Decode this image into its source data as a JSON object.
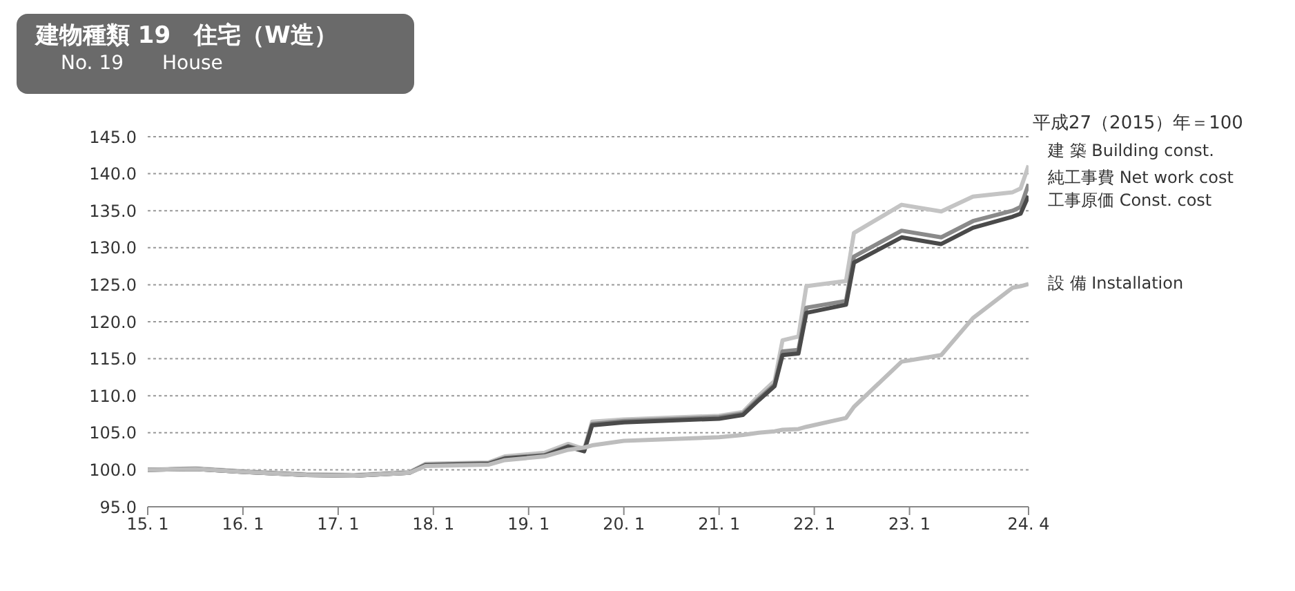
{
  "chart_data": {
    "type": "line",
    "title": "建物種類 19　住宅（W造）",
    "subtitle": "No. 19　　House",
    "annotations": [
      "平成27（2015）年＝100"
    ],
    "x": [
      "2015-01",
      "2015-07",
      "2016-01",
      "2016-09",
      "2017-03",
      "2017-10",
      "2017-12",
      "2018-08",
      "2018-10",
      "2019-03",
      "2019-06",
      "2019-08",
      "2019-09",
      "2020-01",
      "2021-01",
      "2021-04",
      "2021-06",
      "2021-08",
      "2021-09",
      "2021-11",
      "2021-12",
      "2022-05",
      "2022-06",
      "2022-12",
      "2023-05",
      "2023-09",
      "2024-02",
      "2024-03",
      "2024-04"
    ],
    "series": [
      {
        "name": "建 築  Building const.",
        "color": "#c4c4c4",
        "values": [
          100,
          100.2,
          99.8,
          99.4,
          99.3,
          99.7,
          100.8,
          101,
          101.8,
          102.3,
          103.5,
          102.8,
          106.5,
          106.8,
          107.3,
          107.8,
          110,
          112,
          117.5,
          118,
          124.8,
          125.5,
          132,
          135.8,
          134.9,
          136.9,
          137.5,
          138,
          141.1
        ]
      },
      {
        "name": "純工事費  Net work cost",
        "color": "#8a8a8a",
        "values": [
          100,
          100.1,
          99.7,
          99.3,
          99.2,
          99.6,
          100.7,
          100.9,
          101.6,
          102,
          103.2,
          102.6,
          106.2,
          106.6,
          107.1,
          107.6,
          109.6,
          111.5,
          116,
          116.2,
          121.9,
          122.8,
          128.8,
          132.3,
          131.4,
          133.6,
          135,
          135.5,
          138.6
        ]
      },
      {
        "name": "工事原価  Const. cost",
        "color": "#4a4a4a",
        "values": [
          100,
          100.1,
          99.7,
          99.3,
          99.2,
          99.6,
          100.6,
          100.8,
          101.5,
          101.9,
          103.1,
          102.5,
          106,
          106.4,
          106.9,
          107.4,
          109.4,
          111.3,
          115.5,
          115.7,
          121.2,
          122.3,
          128,
          131.4,
          130.5,
          132.7,
          134.2,
          134.6,
          137
        ]
      },
      {
        "name": "設 備  Installation",
        "color": "#bdbdbd",
        "values": [
          100,
          100.1,
          99.7,
          99.3,
          99.2,
          99.6,
          100.5,
          100.7,
          101.3,
          101.8,
          102.7,
          103,
          103.3,
          103.9,
          104.4,
          104.7,
          105,
          105.2,
          105.4,
          105.5,
          105.8,
          107,
          108.5,
          114.6,
          115.5,
          120.5,
          124.6,
          124.8,
          125.1
        ]
      }
    ],
    "xlim": [
      "2015-01",
      "2024-04"
    ],
    "xticks": [
      {
        "value": "2015-01",
        "label": "15. 1"
      },
      {
        "value": "2016-01",
        "label": "16. 1"
      },
      {
        "value": "2017-01",
        "label": "17. 1"
      },
      {
        "value": "2018-01",
        "label": "18. 1"
      },
      {
        "value": "2019-01",
        "label": "19. 1"
      },
      {
        "value": "2020-01",
        "label": "20. 1"
      },
      {
        "value": "2021-01",
        "label": "21. 1"
      },
      {
        "value": "2022-01",
        "label": "22. 1"
      },
      {
        "value": "2023-01",
        "label": "23. 1"
      },
      {
        "value": "2024-04",
        "label": "24. 4"
      }
    ],
    "ylim": [
      95,
      145
    ],
    "yticks": [
      {
        "value": 95,
        "label": "95.0"
      },
      {
        "value": 100,
        "label": "100.0"
      },
      {
        "value": 105,
        "label": "105.0"
      },
      {
        "value": 110,
        "label": "110.0"
      },
      {
        "value": 115,
        "label": "115.0"
      },
      {
        "value": 120,
        "label": "120.0"
      },
      {
        "value": 125,
        "label": "125.0"
      },
      {
        "value": 130,
        "label": "130.0"
      },
      {
        "value": 135,
        "label": "135.0"
      },
      {
        "value": 140,
        "label": "140.0"
      },
      {
        "value": 145,
        "label": "145.0"
      }
    ],
    "grid": "y",
    "legend": false,
    "marker": "none",
    "line_style": "solid"
  }
}
